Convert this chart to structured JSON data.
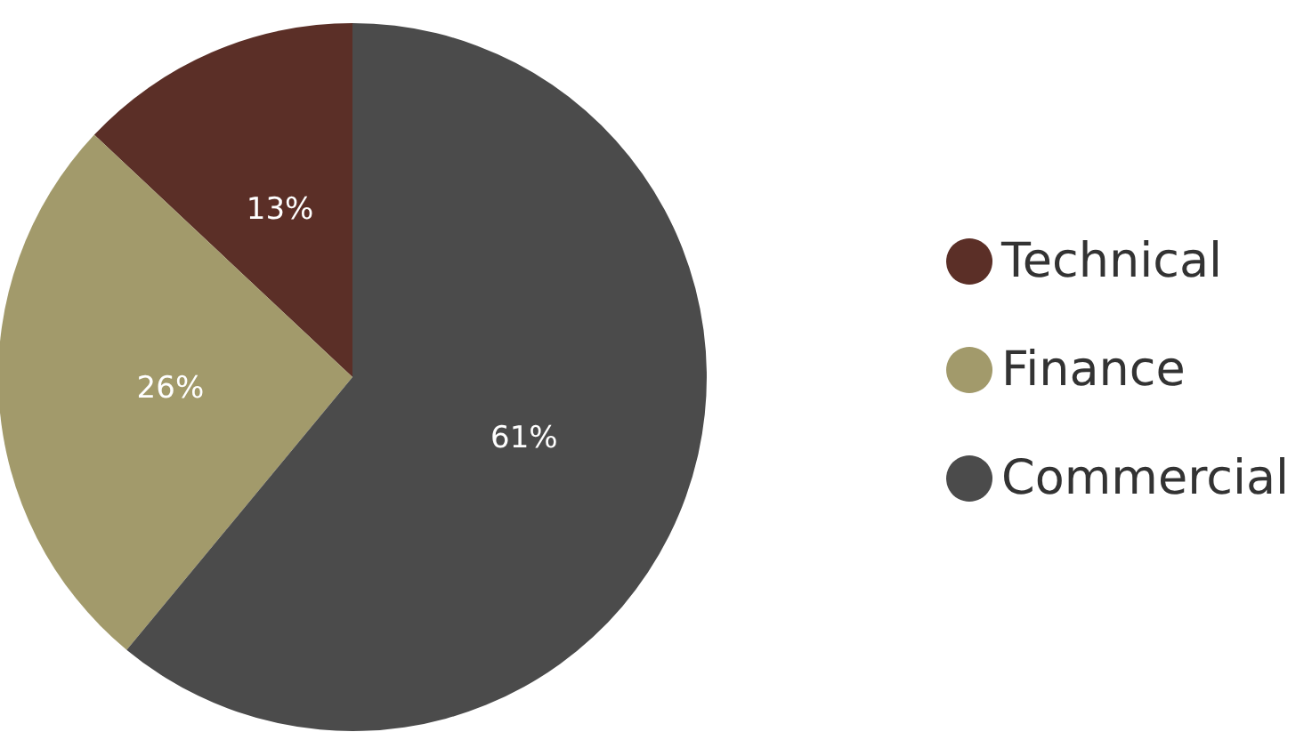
{
  "chart_data": {
    "type": "pie",
    "categories": [
      "Technical",
      "Finance",
      "Commercial"
    ],
    "values": [
      13,
      26,
      61
    ],
    "value_labels": [
      "13%",
      "26%",
      "61%"
    ],
    "colors": [
      "#5b2f27",
      "#a29a6b",
      "#4b4b4b"
    ],
    "legend": "right"
  }
}
